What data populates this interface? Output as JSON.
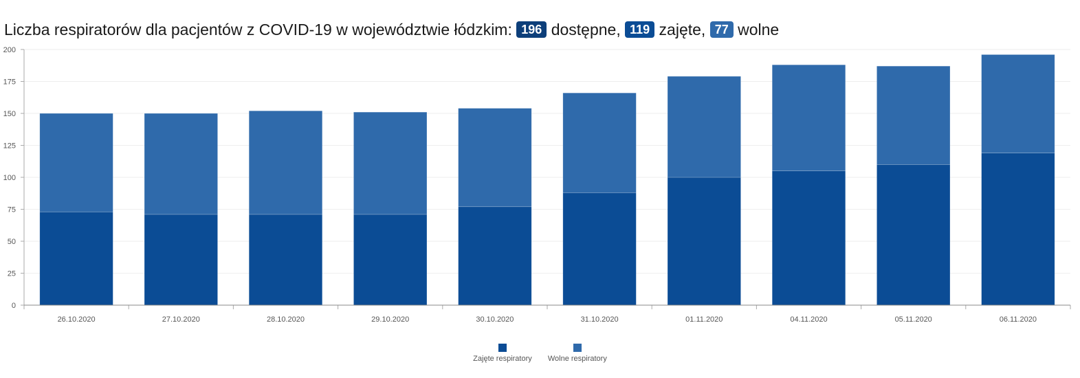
{
  "title": {
    "prefix": "Liczba respiratorów dla pacjentów z COVID-19 w województwie łódzkim:",
    "available": "196",
    "available_label": "dostępne,",
    "occupied": "119",
    "occupied_label": "zajęte,",
    "free": "77",
    "free_label": "wolne"
  },
  "colors": {
    "occupied": "#0b4c95",
    "free": "#2f6aab",
    "grid": "#eeeeee",
    "axis": "#aaaaaa"
  },
  "legend": {
    "occupied": "Zajęte respiratory",
    "free": "Wolne respiratory"
  },
  "chart_data": {
    "type": "bar",
    "stacked": true,
    "categories": [
      "26.10.2020",
      "27.10.2020",
      "28.10.2020",
      "29.10.2020",
      "30.10.2020",
      "31.10.2020",
      "01.11.2020",
      "04.11.2020",
      "05.11.2020",
      "06.11.2020"
    ],
    "series": [
      {
        "name": "Zajęte respiratory",
        "values": [
          73,
          71,
          71,
          71,
          77,
          88,
          100,
          105,
          110,
          119
        ]
      },
      {
        "name": "Wolne respiratory",
        "values": [
          77,
          79,
          81,
          80,
          77,
          78,
          79,
          83,
          77,
          77
        ]
      }
    ],
    "ylim": [
      0,
      200
    ],
    "yticks": [
      0,
      25,
      50,
      75,
      100,
      125,
      150,
      175,
      200
    ],
    "grid": true,
    "legend_position": "bottom-center"
  }
}
